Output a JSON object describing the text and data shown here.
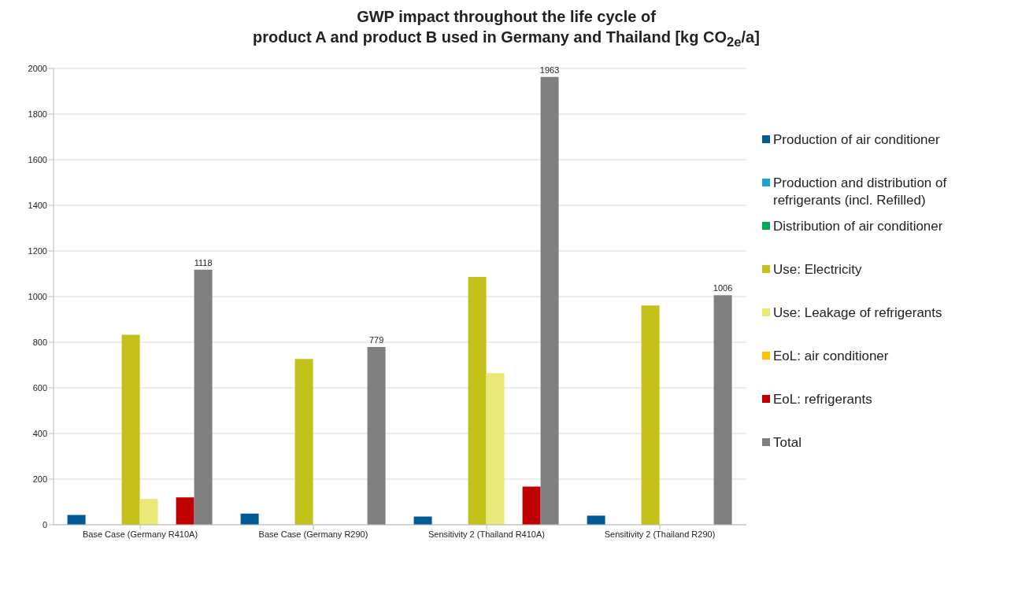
{
  "chart_data": {
    "type": "bar",
    "title": "GWP impact throughout the life cycle of\nproduct A and product B used in Germany and Thailand [kg CO$_{2e}$/a]",
    "categories": [
      "Base Case (Germany R410A)",
      "Base Case (Germany R290)",
      "Sensitivity 2 (Thailand R410A)",
      "Sensitivity 2 (Thailand R290)"
    ],
    "series": [
      {
        "name": "Production of air conditioner",
        "color": "#005a96",
        "values": [
          43,
          49,
          36,
          40
        ]
      },
      {
        "name": "Production and distribution of refrigerants (incl. Refilled)",
        "color": "#1aa6cc",
        "values": [
          0,
          0,
          null,
          0
        ]
      },
      {
        "name": "Distribution of air conditioner",
        "color": "#00a651",
        "values": [
          0,
          0,
          0,
          0
        ]
      },
      {
        "name": "Use: Electricity",
        "color": "#c4c21a",
        "values": [
          833,
          727,
          1086,
          961
        ]
      },
      {
        "name": "Use: Leakage of refrigerants",
        "color": "#ebe87a",
        "values": [
          113,
          0,
          665,
          0
        ]
      },
      {
        "name": "EoL: air conditioner",
        "color": "#ffc000",
        "values": [
          0,
          0,
          0,
          0
        ]
      },
      {
        "name": "EoL: refrigerants",
        "color": "#c00000",
        "values": [
          120,
          0,
          167,
          0
        ]
      },
      {
        "name": "Total",
        "color": "#808080",
        "values": [
          1118,
          779,
          1963,
          1006
        ],
        "value_labels": [
          "1118",
          "779",
          "1963",
          "1006"
        ]
      }
    ],
    "ylim": [
      0,
      2000
    ],
    "yticks": [
      0,
      200,
      400,
      600,
      800,
      1000,
      1200,
      1400,
      1600,
      1800,
      2000
    ],
    "grid": "y",
    "legend": "right"
  }
}
